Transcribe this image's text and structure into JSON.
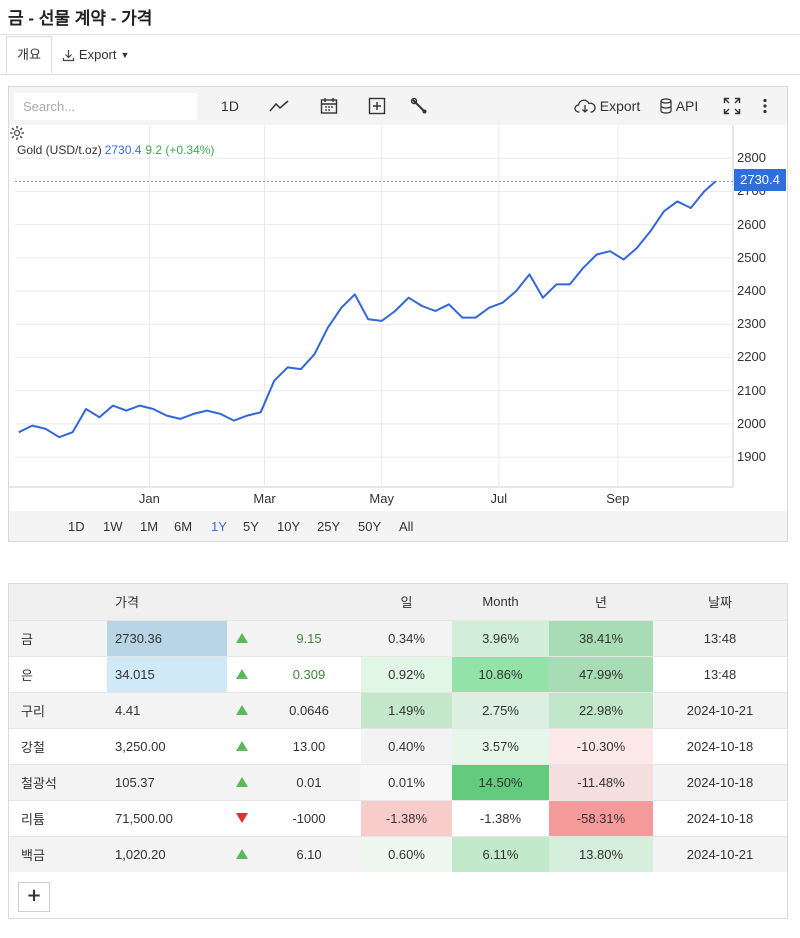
{
  "page": {
    "title": "금 - 선물 계약 - 가격"
  },
  "tabs": [
    {
      "label": "개요"
    },
    {
      "label": "Export"
    }
  ],
  "toolbar": {
    "search_placeholder": "Search...",
    "interval": "1D",
    "export_label": "Export",
    "api_label": "API",
    "icons": [
      "line-chart-icon",
      "calendar-icon",
      "plus-box-icon",
      "wrench-icon",
      "cloud-download-icon",
      "database-icon",
      "fullscreen-icon",
      "more-vert-icon",
      "gear-icon"
    ]
  },
  "colors": {
    "line": "#3366d6",
    "accent": "#2f6fdc",
    "up": "#5cb85c",
    "down": "#d9342b"
  },
  "chart_data": {
    "type": "line",
    "series": [
      {
        "name": "Gold (USD/t.oz)",
        "last": "2730.4",
        "change": "9.2 (+0.34%)",
        "x": [
          "2023-10-25",
          "2023-11-01",
          "2023-11-08",
          "2023-11-15",
          "2023-11-22",
          "2023-11-29",
          "2023-12-06",
          "2023-12-13",
          "2023-12-20",
          "2023-12-27",
          "2024-01-03",
          "2024-01-10",
          "2024-01-17",
          "2024-01-24",
          "2024-01-31",
          "2024-02-07",
          "2024-02-14",
          "2024-02-21",
          "2024-02-28",
          "2024-03-06",
          "2024-03-13",
          "2024-03-20",
          "2024-03-27",
          "2024-04-03",
          "2024-04-10",
          "2024-04-17",
          "2024-04-24",
          "2024-05-01",
          "2024-05-08",
          "2024-05-15",
          "2024-05-22",
          "2024-05-29",
          "2024-06-05",
          "2024-06-12",
          "2024-06-19",
          "2024-06-26",
          "2024-07-03",
          "2024-07-10",
          "2024-07-17",
          "2024-07-24",
          "2024-07-31",
          "2024-08-07",
          "2024-08-14",
          "2024-08-21",
          "2024-08-28",
          "2024-09-04",
          "2024-09-11",
          "2024-09-18",
          "2024-09-25",
          "2024-10-02",
          "2024-10-09",
          "2024-10-16",
          "2024-10-22"
        ],
        "values": [
          1975,
          1995,
          1985,
          1960,
          1975,
          2045,
          2020,
          2055,
          2040,
          2055,
          2045,
          2025,
          2015,
          2030,
          2040,
          2030,
          2010,
          2025,
          2035,
          2130,
          2170,
          2165,
          2210,
          2290,
          2350,
          2390,
          2315,
          2310,
          2340,
          2380,
          2355,
          2340,
          2360,
          2320,
          2320,
          2350,
          2365,
          2400,
          2450,
          2380,
          2420,
          2420,
          2470,
          2510,
          2520,
          2495,
          2530,
          2580,
          2640,
          2670,
          2650,
          2700,
          2730.4
        ]
      }
    ],
    "yticks": [
      1900,
      2000,
      2100,
      2200,
      2300,
      2400,
      2500,
      2600,
      2700,
      2800
    ],
    "ylim": [
      1810,
      2900
    ],
    "xticks": [
      {
        "label": "Jan",
        "date": "2024-01-01"
      },
      {
        "label": "Mar",
        "date": "2024-03-01"
      },
      {
        "label": "May",
        "date": "2024-05-01"
      },
      {
        "label": "Jul",
        "date": "2024-07-01"
      },
      {
        "label": "Sep",
        "date": "2024-09-01"
      }
    ],
    "xlim": [
      "2023-10-23",
      "2024-10-31"
    ],
    "grid": true,
    "last_price_tag": "2730.4"
  },
  "ranges": [
    "1D",
    "1W",
    "1M",
    "6M",
    "1Y",
    "5Y",
    "10Y",
    "25Y",
    "50Y",
    "All"
  ],
  "active_range": "1Y",
  "table": {
    "headers": [
      "",
      "가격",
      "",
      "",
      "일",
      "Month",
      "년",
      "날짜"
    ],
    "rows": [
      {
        "name": "금",
        "price": "2730.36",
        "dir": "up",
        "change": "9.15",
        "day": "0.34%",
        "month": "3.96%",
        "year": "38.41%",
        "date": "13:48"
      },
      {
        "name": "은",
        "price": "34.015",
        "dir": "up",
        "change": "0.309",
        "day": "0.92%",
        "month": "10.86%",
        "year": "47.99%",
        "date": "13:48"
      },
      {
        "name": "구리",
        "price": "4.41",
        "dir": "up",
        "change": "0.0646",
        "day": "1.49%",
        "month": "2.75%",
        "year": "22.98%",
        "date": "2024-10-21"
      },
      {
        "name": "강철",
        "price": "3,250.00",
        "dir": "up",
        "change": "13.00",
        "day": "0.40%",
        "month": "3.57%",
        "year": "-10.30%",
        "date": "2024-10-18"
      },
      {
        "name": "철광석",
        "price": "105.37",
        "dir": "up",
        "change": "0.01",
        "day": "0.01%",
        "month": "14.50%",
        "year": "-11.48%",
        "date": "2024-10-18"
      },
      {
        "name": "리튬",
        "price": "71,500.00",
        "dir": "down",
        "change": "-1000",
        "day": "-1.38%",
        "month": "-1.38%",
        "year": "-58.31%",
        "date": "2024-10-18"
      },
      {
        "name": "백금",
        "price": "1,020.20",
        "dir": "up",
        "change": "6.10",
        "day": "0.60%",
        "month": "6.11%",
        "year": "13.80%",
        "date": "2024-10-21"
      }
    ],
    "add_label": "+"
  }
}
